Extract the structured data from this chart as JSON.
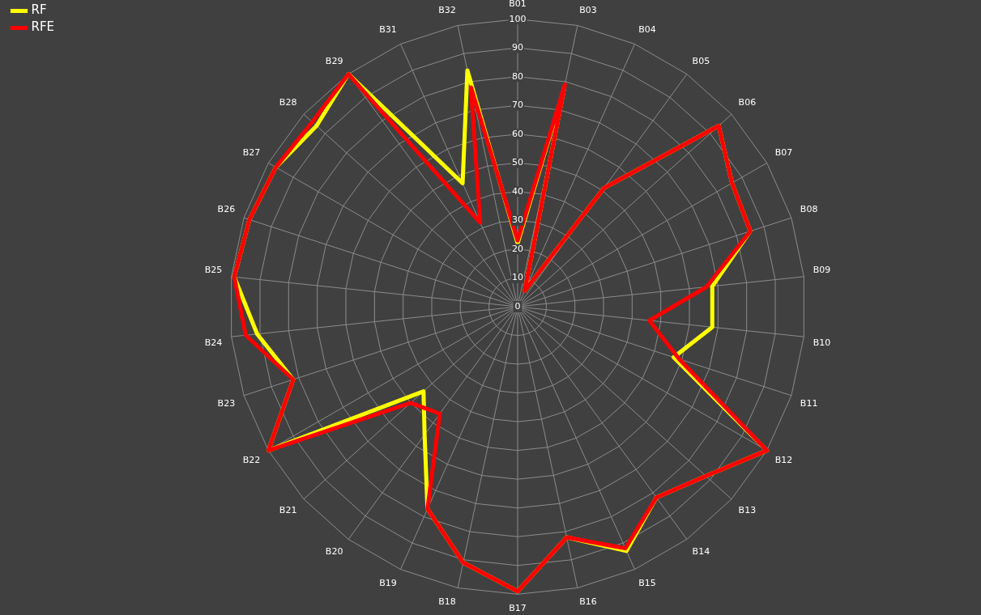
{
  "chart_data": {
    "type": "radar",
    "categories": [
      "B01",
      "B03",
      "B04",
      "B05",
      "B06",
      "B07",
      "B08",
      "B09",
      "B10",
      "B11",
      "B12",
      "B13",
      "B14",
      "B15",
      "B16",
      "B17",
      "B18",
      "B19",
      "B20",
      "B21",
      "B22",
      "B23",
      "B24",
      "B25",
      "B26",
      "B27",
      "B28",
      "B29",
      "B31",
      "B32"
    ],
    "series": [
      {
        "name": "RF",
        "color": "#ffff00",
        "values": [
          22,
          78,
          6,
          51,
          94,
          86,
          85,
          68,
          68,
          57,
          100,
          88,
          82,
          93,
          82,
          99,
          91,
          77,
          55,
          44,
          100,
          82,
          91,
          99,
          98,
          97,
          94,
          100,
          47,
          84
        ]
      },
      {
        "name": "RFE",
        "color": "#ff0000",
        "values": [
          23,
          79,
          6,
          51,
          94,
          86,
          85,
          66,
          46,
          59,
          100,
          88,
          82,
          92,
          82,
          99,
          91,
          77,
          46,
          50,
          100,
          82,
          95,
          99,
          98,
          97,
          96,
          100,
          32,
          78
        ]
      }
    ],
    "ylim": [
      0,
      100
    ],
    "yticks": [
      0,
      10,
      20,
      30,
      40,
      50,
      60,
      70,
      80,
      90,
      100
    ],
    "grid": true,
    "legend": "top left",
    "marker": "none",
    "line_style": "solid"
  }
}
